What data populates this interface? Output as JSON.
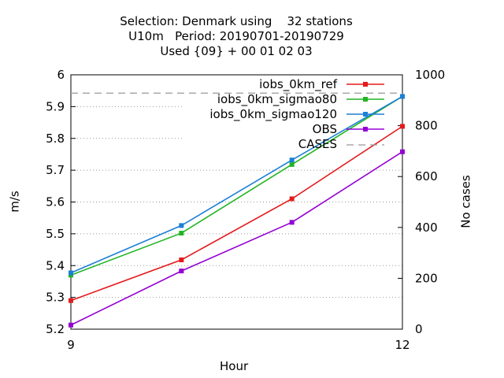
{
  "chart_data": {
    "type": "line",
    "title_lines": [
      "Selection: Denmark using    32 stations",
      "U10m   Period: 20190701-20190729",
      "Used {09} + 00 01 02 03"
    ],
    "xlabel": "Hour",
    "ylabel": "m/s",
    "y2label": "No cases",
    "xlim": [
      9,
      12
    ],
    "ylim": [
      5.2,
      6.0
    ],
    "y2lim": [
      0,
      1000
    ],
    "x_ticks": [
      9,
      12
    ],
    "x_tick_labels": [
      "9",
      "12"
    ],
    "y_ticks": [
      5.2,
      5.3,
      5.4,
      5.5,
      5.6,
      5.7,
      5.8,
      5.9,
      6.0
    ],
    "y_tick_labels": [
      "5.2",
      "5.3",
      "5.4",
      "5.5",
      "5.6",
      "5.7",
      "5.8",
      "5.9",
      "6"
    ],
    "y2_ticks": [
      0,
      200,
      400,
      600,
      800,
      1000
    ],
    "y2_tick_labels": [
      "0",
      "200",
      "400",
      "600",
      "800",
      "1000"
    ],
    "grid": true,
    "legend_position": "top-right",
    "x": [
      9,
      10,
      11,
      12
    ],
    "series": [
      {
        "name": "iobs_0km_ref",
        "color": "#e41a1c",
        "axis": "y",
        "values": [
          5.29,
          5.418,
          5.61,
          5.838
        ]
      },
      {
        "name": "iobs_0km_sigmao80",
        "color": "#22b422",
        "axis": "y",
        "values": [
          5.37,
          5.502,
          5.718,
          5.932
        ]
      },
      {
        "name": "iobs_0km_sigmao120",
        "color": "#1c7fd6",
        "axis": "y",
        "values": [
          5.377,
          5.526,
          5.732,
          5.932
        ]
      },
      {
        "name": "OBS",
        "color": "#9400d3",
        "axis": "y",
        "values": [
          5.213,
          5.383,
          5.536,
          5.758
        ]
      },
      {
        "name": "CASES",
        "color": "#999999",
        "axis": "y2",
        "dashed": true,
        "values": [
          928,
          928,
          928,
          928
        ]
      }
    ]
  }
}
